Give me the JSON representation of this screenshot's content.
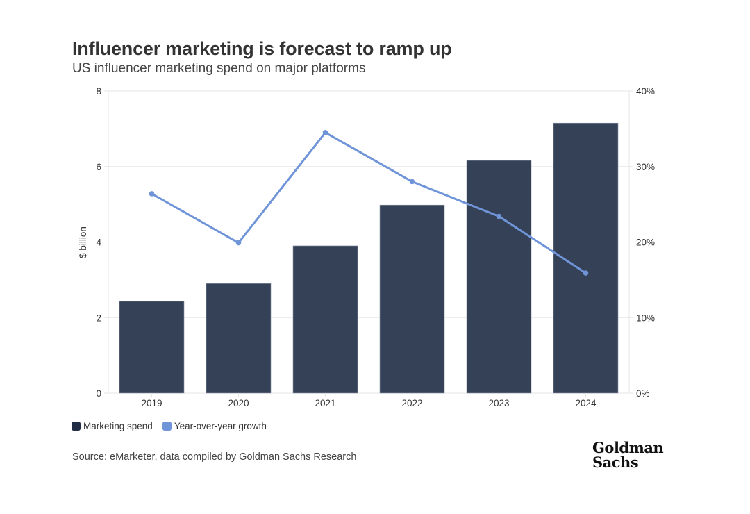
{
  "header": {
    "title": "Influencer marketing is forecast to ramp up",
    "subtitle": "US influencer marketing spend on major platforms"
  },
  "colors": {
    "bar": "#354157",
    "line": "#6f94d8",
    "grid": "#e6e6e6",
    "bar_swatch": "#212d45"
  },
  "chart_data": {
    "type": "bar",
    "title": "Influencer marketing is forecast to ramp up",
    "subtitle": "US influencer marketing spend on major platforms",
    "categories": [
      "2019",
      "2020",
      "2021",
      "2022",
      "2023",
      "2024"
    ],
    "series": [
      {
        "name": "Marketing spend",
        "type": "bar",
        "axis": "left",
        "values": [
          2.43,
          2.9,
          3.9,
          4.98,
          6.16,
          7.15
        ]
      },
      {
        "name": "Year-over-year growth",
        "type": "line",
        "axis": "right",
        "values": [
          26.4,
          19.9,
          34.5,
          28.0,
          23.4,
          15.9
        ]
      }
    ],
    "xlabel": "",
    "ylabel": "$ billion",
    "ylim": [
      0,
      8
    ],
    "y_ticks": [
      "0",
      "2",
      "4",
      "6",
      "8"
    ],
    "y2lim": [
      0,
      40
    ],
    "y2_ticks": [
      "0%",
      "10%",
      "20%",
      "30%",
      "40%"
    ],
    "grid": true,
    "legend_position": "bottom-left"
  },
  "legend": [
    {
      "label": "Marketing spend"
    },
    {
      "label": "Year-over-year growth"
    }
  ],
  "source": "Source: eMarketer, data compiled by Goldman Sachs Research",
  "logo": {
    "line1": "Goldman",
    "line2": "Sachs"
  }
}
